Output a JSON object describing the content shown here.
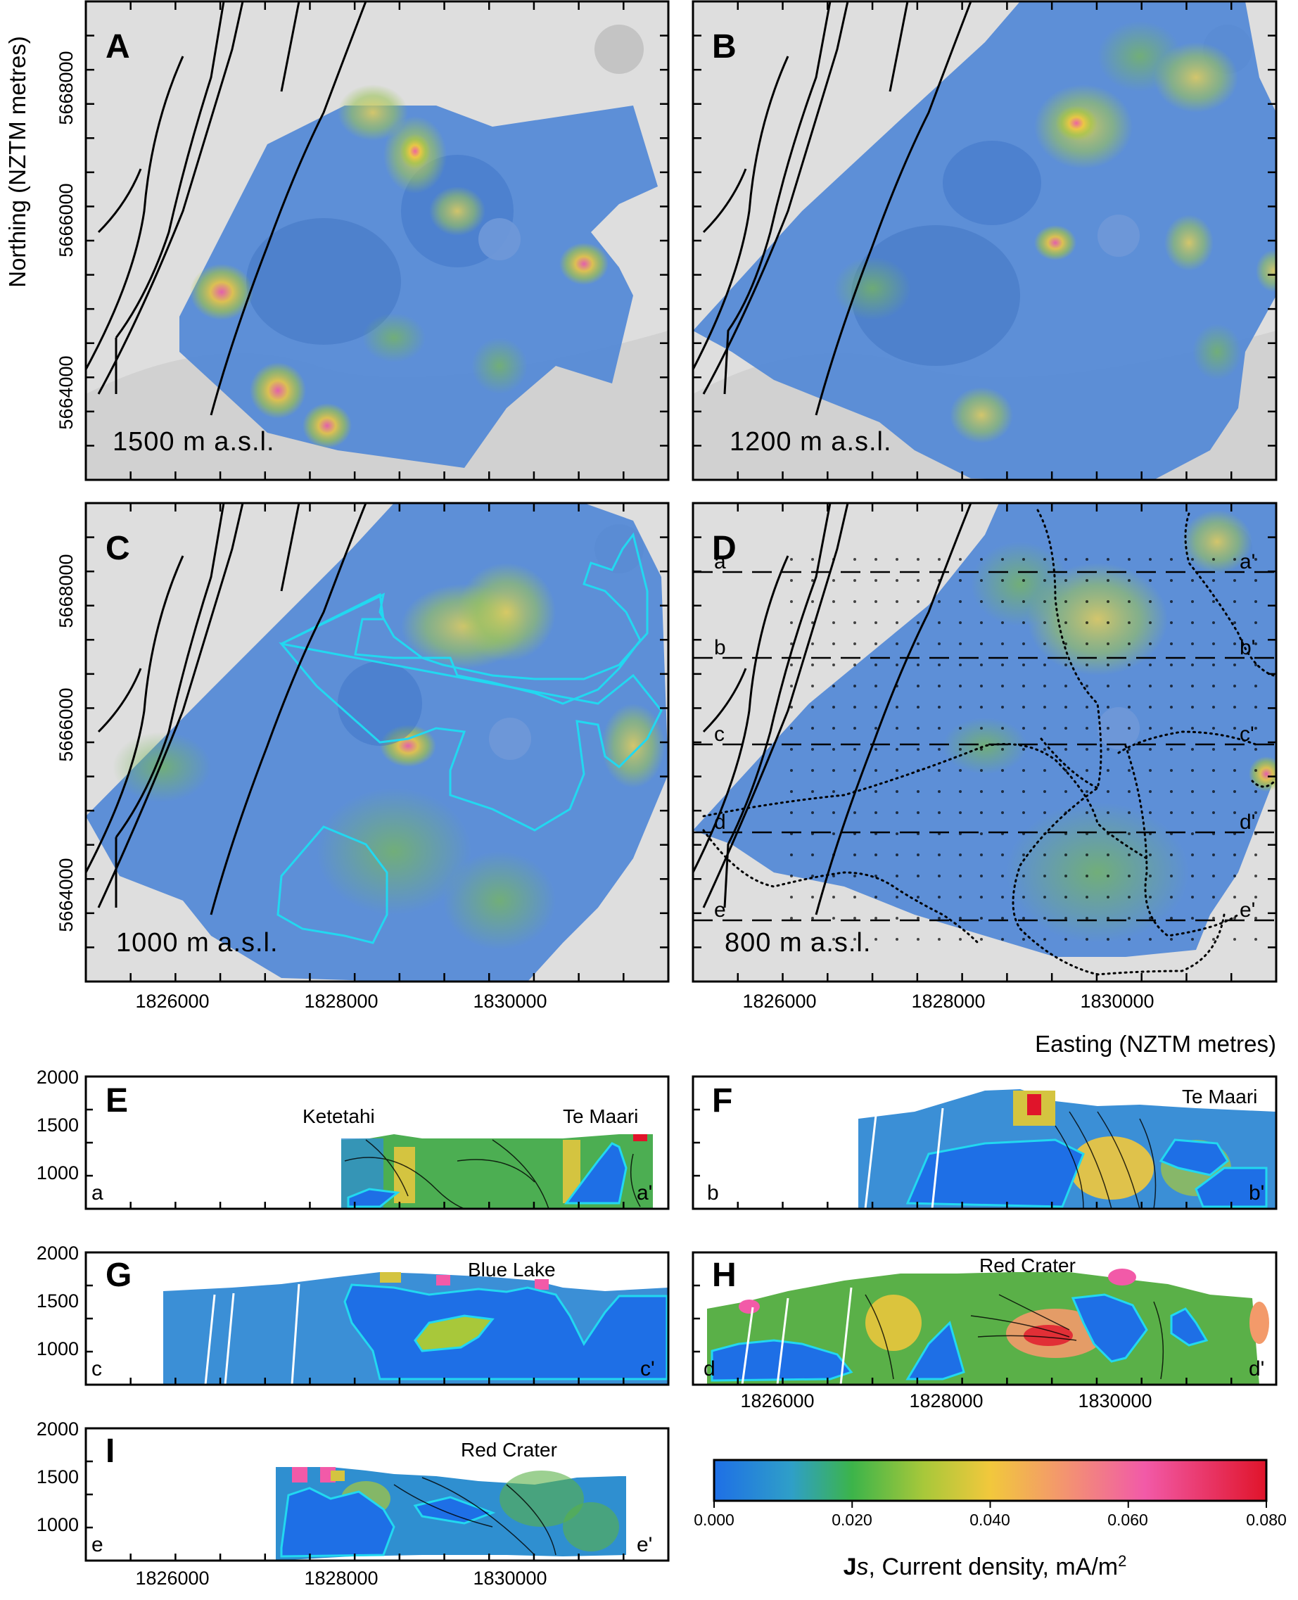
{
  "axes": {
    "y_title": "Northing (NZTM metres)",
    "x_title": "Easting (NZTM metres)",
    "northing_ticks": [
      "5668000",
      "5666000",
      "5664000"
    ],
    "easting_ticks": [
      "1826000",
      "1828000",
      "1830000"
    ],
    "elevation_ticks": [
      "2000",
      "1500",
      "1000"
    ]
  },
  "map_panels": [
    {
      "letter": "A",
      "elevation": "1500 m a.s.l."
    },
    {
      "letter": "B",
      "elevation": "1200 m a.s.l."
    },
    {
      "letter": "C",
      "elevation": "1000 m a.s.l."
    },
    {
      "letter": "D",
      "elevation": "800 m a.s.l."
    }
  ],
  "profile_lines": [
    {
      "start": "a",
      "end": "a'"
    },
    {
      "start": "b",
      "end": "b'"
    },
    {
      "start": "c",
      "end": "c'"
    },
    {
      "start": "d",
      "end": "d'"
    },
    {
      "start": "e",
      "end": "e'"
    }
  ],
  "section_panels": [
    {
      "letter": "E",
      "start": "a",
      "end": "a'",
      "places": [
        "Ketetahi",
        "Te Maari"
      ]
    },
    {
      "letter": "F",
      "start": "b",
      "end": "b'",
      "places": [
        "Te Maari"
      ]
    },
    {
      "letter": "G",
      "start": "c",
      "end": "c'",
      "places": [
        "Blue Lake"
      ]
    },
    {
      "letter": "H",
      "start": "d",
      "end": "d'",
      "places": [
        "Red Crater"
      ]
    },
    {
      "letter": "I",
      "start": "e",
      "end": "e'",
      "places": [
        "Red Crater"
      ]
    }
  ],
  "colorbar": {
    "ticks": [
      "0.000",
      "0.020",
      "0.040",
      "0.060",
      "0.080"
    ],
    "title_bold": "J",
    "title_italic": "s",
    "title_rest": ", Current density, mA/m",
    "title_sup": "2",
    "colors": [
      "#1e6fe6",
      "#2f9fc8",
      "#3cb44a",
      "#a8c83a",
      "#f2c83c",
      "#f39a6a",
      "#f25aa8",
      "#e0142a"
    ]
  },
  "chart_data": {
    "type": "heatmap",
    "title": "",
    "quantity": "Js, Current density, mA/m2",
    "value_range": [
      0.0,
      0.08
    ],
    "map_extent": {
      "easting": [
        1825000,
        1831500
      ],
      "northing": [
        5663500,
        5668800
      ]
    },
    "section_extent": {
      "elevation": [
        700,
        2000
      ]
    },
    "depth_slices_m_asl": [
      1500,
      1200,
      1000,
      800
    ]
  }
}
